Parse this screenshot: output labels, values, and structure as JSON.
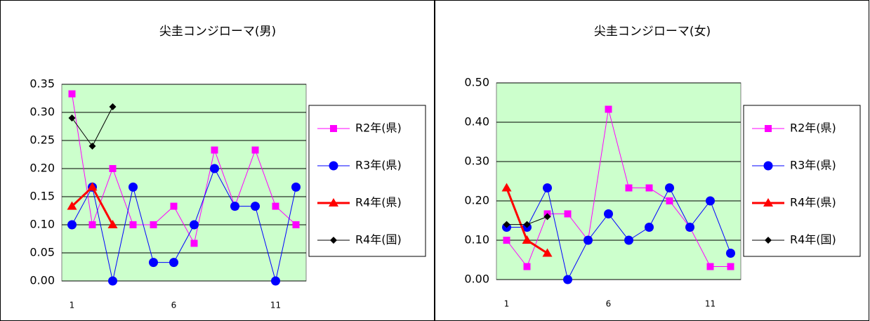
{
  "chart_data": [
    {
      "type": "line",
      "title": "尖圭コンジローマ(男)",
      "categories": [
        "1",
        null,
        null,
        null,
        null,
        "6",
        null,
        null,
        null,
        null,
        "11",
        null
      ],
      "ylim": [
        0,
        0.35
      ],
      "yticks": [
        {
          "value": 0,
          "label": "0.00"
        },
        {
          "value": 0.05,
          "label": "0.05"
        },
        {
          "value": 0.1,
          "label": "0.10"
        },
        {
          "value": 0.15,
          "label": "0.15"
        },
        {
          "value": 0.2,
          "label": "0.20"
        },
        {
          "value": 0.25,
          "label": "0.25"
        },
        {
          "value": 0.3,
          "label": "0.30"
        },
        {
          "value": 0.35,
          "label": "0.35"
        }
      ],
      "grid": true,
      "series": [
        {
          "name": "R2年(県)",
          "color": "#ff00ff",
          "marker": "square",
          "line_width": 1,
          "values": [
            0.333,
            0.1,
            0.2,
            0.1,
            0.1,
            0.133,
            0.067,
            0.233,
            0.133,
            0.233,
            0.133,
            0.1
          ]
        },
        {
          "name": "R3年(県)",
          "color": "#0000ff",
          "marker": "circle",
          "line_width": 1,
          "values": [
            0.1,
            0.167,
            0,
            0.167,
            0.033,
            0.033,
            0.1,
            0.2,
            0.133,
            0.133,
            0,
            0.167
          ]
        },
        {
          "name": "R4年(県)",
          "color": "#ff0000",
          "marker": "triangle",
          "line_width": 3,
          "values": [
            0.133,
            0.167,
            0.1,
            null,
            null,
            null,
            null,
            null,
            null,
            null,
            null,
            null
          ]
        },
        {
          "name": "R4年(国)",
          "color": "#000000",
          "marker": "diamond",
          "line_width": 1,
          "values": [
            0.29,
            0.24,
            0.31,
            null,
            null,
            null,
            null,
            null,
            null,
            null,
            null,
            null
          ]
        }
      ]
    },
    {
      "type": "line",
      "title": "尖圭コンジローマ(女)",
      "categories": [
        "1",
        null,
        null,
        null,
        null,
        "6",
        null,
        null,
        null,
        null,
        "11",
        null
      ],
      "ylim": [
        0,
        0.5
      ],
      "yticks": [
        {
          "value": 0,
          "label": "0.00"
        },
        {
          "value": 0.1,
          "label": "0.10"
        },
        {
          "value": 0.2,
          "label": "0.20"
        },
        {
          "value": 0.3,
          "label": "0.30"
        },
        {
          "value": 0.4,
          "label": "0.40"
        },
        {
          "value": 0.5,
          "label": "0.50"
        }
      ],
      "grid": true,
      "series": [
        {
          "name": "R2年(県)",
          "color": "#ff00ff",
          "marker": "square",
          "line_width": 1,
          "values": [
            0.1,
            0.033,
            0.167,
            0.167,
            0.1,
            0.433,
            0.233,
            0.233,
            0.2,
            0.133,
            0.033,
            0.033
          ]
        },
        {
          "name": "R3年(県)",
          "color": "#0000ff",
          "marker": "circle",
          "line_width": 1,
          "values": [
            0.133,
            0.133,
            0.233,
            0,
            0.1,
            0.167,
            0.1,
            0.133,
            0.233,
            0.133,
            0.2,
            0.067
          ]
        },
        {
          "name": "R4年(県)",
          "color": "#ff0000",
          "marker": "triangle",
          "line_width": 3,
          "values": [
            0.233,
            0.1,
            0.067,
            null,
            null,
            null,
            null,
            null,
            null,
            null,
            null,
            null
          ]
        },
        {
          "name": "R4年(国)",
          "color": "#000000",
          "marker": "diamond",
          "line_width": 1,
          "values": [
            0.14,
            0.14,
            0.16,
            null,
            null,
            null,
            null,
            null,
            null,
            null,
            null,
            null
          ]
        }
      ]
    }
  ]
}
